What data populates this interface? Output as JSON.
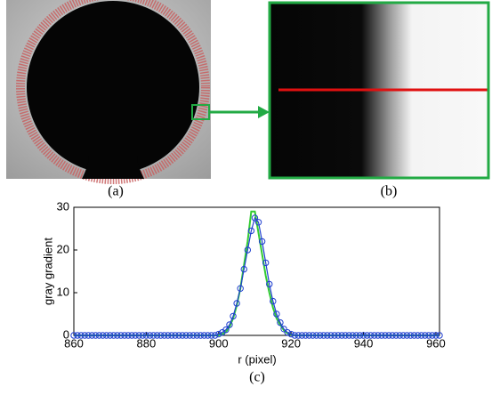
{
  "figure": {
    "panel_labels": [
      "(a)",
      "(b)",
      "(c)"
    ]
  },
  "chart_data": {
    "type": "line",
    "x_label": "r (pixel)",
    "y_label": "gray gradient",
    "x": [
      860,
      861,
      862,
      863,
      864,
      865,
      866,
      867,
      868,
      869,
      870,
      871,
      872,
      873,
      874,
      875,
      876,
      877,
      878,
      879,
      880,
      881,
      882,
      883,
      884,
      885,
      886,
      887,
      888,
      889,
      890,
      891,
      892,
      893,
      894,
      895,
      896,
      897,
      898,
      899,
      900,
      901,
      902,
      903,
      904,
      905,
      906,
      907,
      908,
      909,
      910,
      911,
      912,
      913,
      914,
      915,
      916,
      917,
      918,
      919,
      920,
      921,
      922,
      923,
      924,
      925,
      926,
      927,
      928,
      929,
      930,
      931,
      932,
      933,
      934,
      935,
      936,
      937,
      938,
      939,
      940,
      941,
      942,
      943,
      944,
      945,
      946,
      947,
      948,
      949,
      950,
      951,
      952,
      953,
      954,
      955,
      956,
      957,
      958,
      959,
      960,
      961
    ],
    "series": [
      {
        "color": "#1f3fd0",
        "marker": "circle",
        "values": [
          0,
          0,
          0,
          0,
          0,
          0,
          0,
          0,
          0,
          0,
          0,
          0,
          0,
          0,
          0,
          0,
          0,
          0,
          0,
          0,
          0,
          0,
          0,
          0,
          0,
          0,
          0,
          0,
          0,
          0,
          0,
          0,
          0,
          0,
          0,
          0,
          0,
          0,
          0,
          0,
          0.3,
          0.7,
          1.3,
          2.5,
          4.5,
          7.5,
          11,
          15.5,
          20,
          24.5,
          27.5,
          26.5,
          22,
          17,
          12,
          8,
          5,
          3,
          1.5,
          0.7,
          0.3,
          0,
          0,
          0,
          0,
          0,
          0,
          0,
          0,
          0,
          0,
          0,
          0,
          0,
          0,
          0,
          0,
          0,
          0,
          0,
          0,
          0,
          0,
          0,
          0,
          0,
          0,
          0,
          0,
          0,
          0,
          0,
          0,
          0,
          0,
          0,
          0,
          0,
          0,
          0,
          0,
          0
        ]
      },
      {
        "color": "#33cc33",
        "values": [
          0,
          0,
          0,
          0,
          0,
          0,
          0,
          0,
          0,
          0,
          0,
          0,
          0,
          0,
          0,
          0,
          0,
          0,
          0,
          0,
          0,
          0,
          0,
          0,
          0,
          0,
          0,
          0,
          0,
          0,
          0,
          0,
          0,
          0,
          0,
          0,
          0,
          0,
          0,
          0,
          0,
          0.3,
          0.8,
          2,
          4,
          7,
          11,
          16.5,
          22,
          29,
          29,
          24,
          19,
          14,
          10,
          6.5,
          4,
          2.5,
          1.2,
          0.5,
          0.2,
          0,
          0,
          0,
          0,
          0,
          0,
          0,
          0,
          0,
          0,
          0,
          0,
          0,
          0,
          0,
          0,
          0,
          0,
          0,
          0,
          0,
          0,
          0,
          0,
          0,
          0,
          0,
          0,
          0,
          0,
          0,
          0,
          0,
          0,
          0,
          0,
          0,
          0,
          0,
          0,
          0
        ]
      }
    ],
    "xlim": [
      860,
      961
    ],
    "xticks": [
      860,
      880,
      900,
      920,
      940,
      960
    ],
    "ylim": [
      0,
      30
    ],
    "yticks": [
      0,
      10,
      20,
      30
    ]
  }
}
